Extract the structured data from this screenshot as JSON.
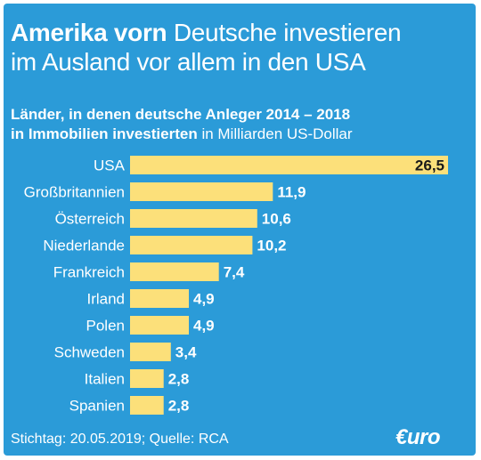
{
  "headline": {
    "bold": "Amerika vorn",
    "line1_rest": " Deutsche investieren",
    "line2": "im Ausland vor allem in den USA"
  },
  "subhead": {
    "line1": "Länder, in denen deutsche Anleger 2014 – 2018",
    "line2_bold": "in Immobilien investierten",
    "line2_rest": " in Milliarden US-Dollar"
  },
  "footer": "Stichtag: 20.05.2019; Quelle: RCA",
  "logo": "€uro",
  "colors": {
    "background": "#2b9bd8",
    "bar": "#fce07a",
    "text": "#ffffff",
    "value_text": "#1a1a1a"
  },
  "chart_data": {
    "type": "bar",
    "orientation": "horizontal",
    "categories": [
      "USA",
      "Großbritannien",
      "Österreich",
      "Niederlande",
      "Frankreich",
      "Irland",
      "Polen",
      "Schweden",
      "Italien",
      "Spanien"
    ],
    "values": [
      26.5,
      11.9,
      10.6,
      10.2,
      7.4,
      4.9,
      4.9,
      3.4,
      2.8,
      2.8
    ],
    "value_labels": [
      "26,5",
      "11,9",
      "10,6",
      "10,2",
      "7,4",
      "4,9",
      "4,9",
      "3,4",
      "2,8",
      "2,8"
    ],
    "xlim": [
      0,
      26.5
    ],
    "grid": false,
    "legend": "none"
  }
}
